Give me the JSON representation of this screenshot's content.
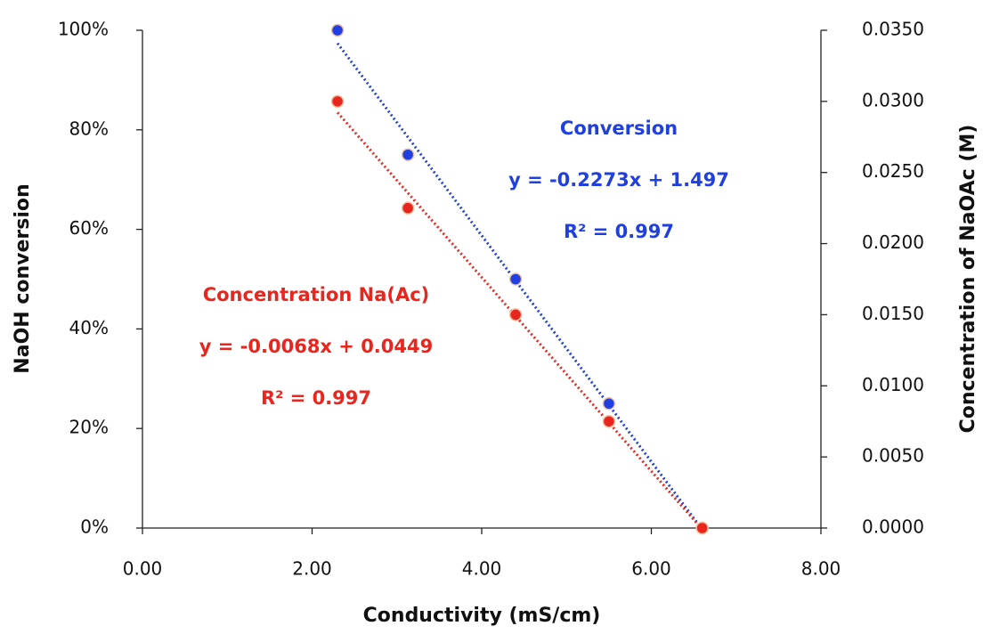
{
  "chart_data": {
    "type": "scatter",
    "x_label": "Conductivity (mS/cm)",
    "y_label": "NaOH conversion",
    "y2_label": "Concentration of NaOAc (M)",
    "x": [
      2.3,
      3.13,
      4.4,
      5.5,
      6.6
    ],
    "series": [
      {
        "name": "Conversion",
        "color": "#1f3fe0",
        "values": [
          100,
          75,
          50,
          25,
          0
        ],
        "annotations": [
          "y = -0.2273x + 1.497",
          "R² = 0.997"
        ]
      },
      {
        "name": "Concentration Na(Ac)",
        "color": "#e8261d",
        "axis": "y2",
        "values": [
          0.03,
          0.0225,
          0.015,
          0.0075,
          0
        ],
        "annotations": [
          "y = -0.0068x + 0.0449",
          "R² = 0.997"
        ]
      }
    ],
    "trendline": true,
    "xlim": [
      0,
      8
    ],
    "xticks": [
      {
        "value": 0,
        "label": "0.00"
      },
      {
        "value": 2,
        "label": "2.00"
      },
      {
        "value": 4,
        "label": "4.00"
      },
      {
        "value": 6,
        "label": "6.00"
      },
      {
        "value": 8,
        "label": "8.00"
      }
    ],
    "ylim": [
      0,
      100
    ],
    "yticks": [
      {
        "value": 0,
        "label": "0%"
      },
      {
        "value": 20,
        "label": "20%"
      },
      {
        "value": 40,
        "label": "40%"
      },
      {
        "value": 60,
        "label": "60%"
      },
      {
        "value": 80,
        "label": "80%"
      },
      {
        "value": 100,
        "label": "100%"
      }
    ],
    "y2lim": [
      0,
      0.035
    ],
    "y2ticks": [
      {
        "value": 0,
        "label": "0.0000"
      },
      {
        "value": 0.005,
        "label": "0.0050"
      },
      {
        "value": 0.01,
        "label": "0.0100"
      },
      {
        "value": 0.015,
        "label": "0.0150"
      },
      {
        "value": 0.02,
        "label": "0.0200"
      },
      {
        "value": 0.025,
        "label": "0.0250"
      },
      {
        "value": 0.03,
        "label": "0.0300"
      },
      {
        "value": 0.035,
        "label": "0.0350"
      }
    ]
  }
}
